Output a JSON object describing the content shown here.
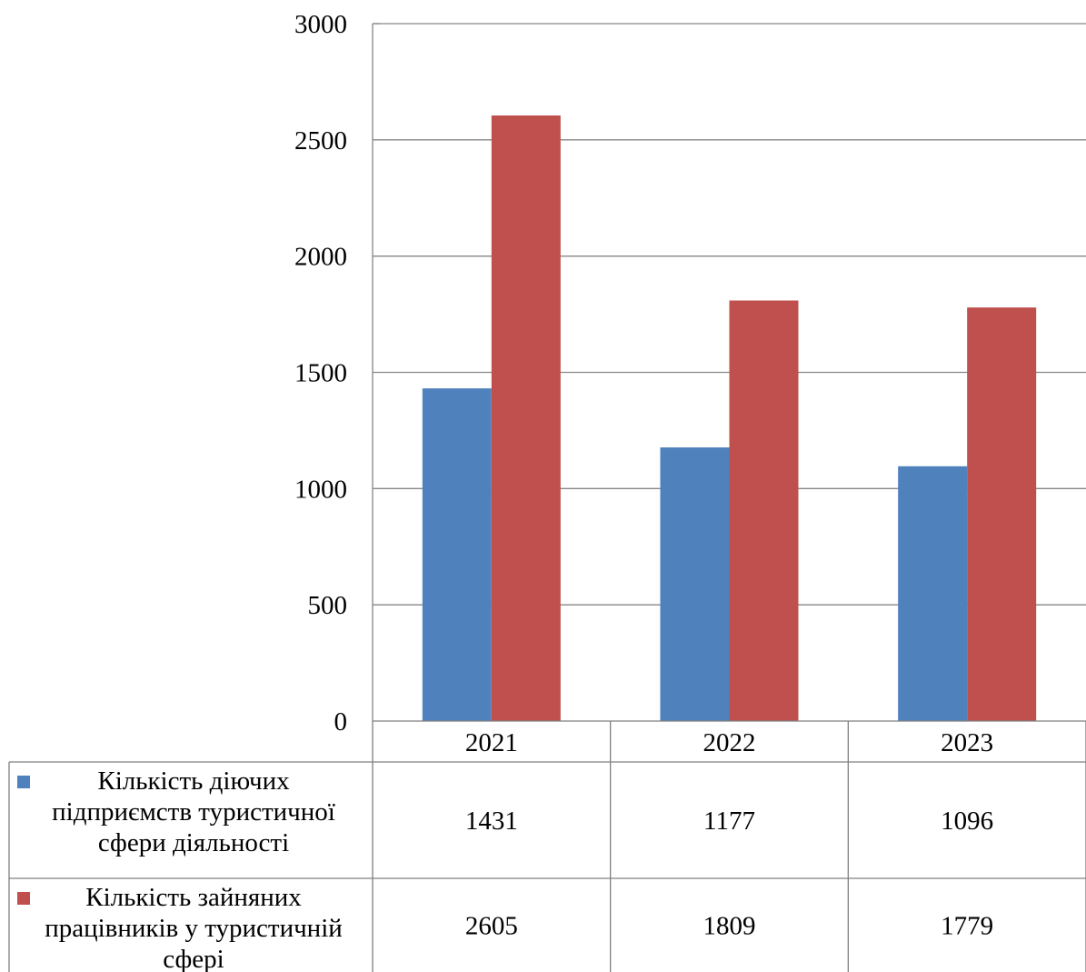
{
  "colors": {
    "series_1": "#4f81bd",
    "series_2": "#c0504d",
    "grid": "#868686",
    "axis": "#868686",
    "table_border": "#808080"
  },
  "chart_data": {
    "type": "bar",
    "title": "",
    "xlabel": "",
    "ylabel": "",
    "categories": [
      "2021",
      "2022",
      "2023"
    ],
    "ylim": [
      0,
      3000
    ],
    "yticks": [
      0,
      500,
      1000,
      1500,
      2000,
      2500,
      3000
    ],
    "grid": true,
    "legend": "data-table",
    "series": [
      {
        "name": "Кількість діючих підприємств туристичної сфери діяльності",
        "values": [
          1431,
          1177,
          1096
        ],
        "color": "#4f81bd"
      },
      {
        "name": "Кількість зайняних працівників у туристичній сфері",
        "values": [
          2605,
          1809,
          1779
        ],
        "color": "#c0504d"
      }
    ]
  }
}
